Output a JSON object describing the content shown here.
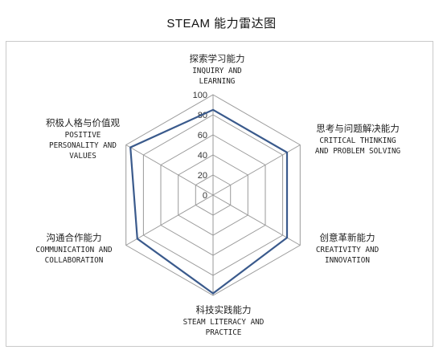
{
  "chart_data": {
    "type": "radar",
    "title": "STEAM 能力雷达图",
    "rlim": [
      0,
      100
    ],
    "ticks": [
      "0",
      "20",
      "40",
      "60",
      "80",
      "100"
    ],
    "tick_values": [
      0,
      20,
      40,
      60,
      80,
      100
    ],
    "grid": true,
    "series_color": "#3a5a8c",
    "axes": [
      {
        "cn": "探索学习能力",
        "en": [
          "INQUIRY AND",
          "LEARNING"
        ]
      },
      {
        "cn": "思考与问题解决能力",
        "en": [
          "CRITICAL THINKING",
          "AND PROBLEM SOLVING"
        ]
      },
      {
        "cn": "创意革新能力",
        "en": [
          "CREATIVITY AND",
          "INNOVATION"
        ]
      },
      {
        "cn": "科技实践能力",
        "en": [
          "STEAM LITERACY AND",
          "PRACTICE"
        ]
      },
      {
        "cn": "沟通合作能力",
        "en": [
          "COMMUNICATION AND",
          "COLLABORATION"
        ]
      },
      {
        "cn": "积极人格与价值观",
        "en": [
          "POSITIVE",
          "PERSONALITY AND",
          "VALUES"
        ]
      }
    ],
    "values": [
      85,
      85,
      85,
      98,
      87,
      95
    ]
  }
}
